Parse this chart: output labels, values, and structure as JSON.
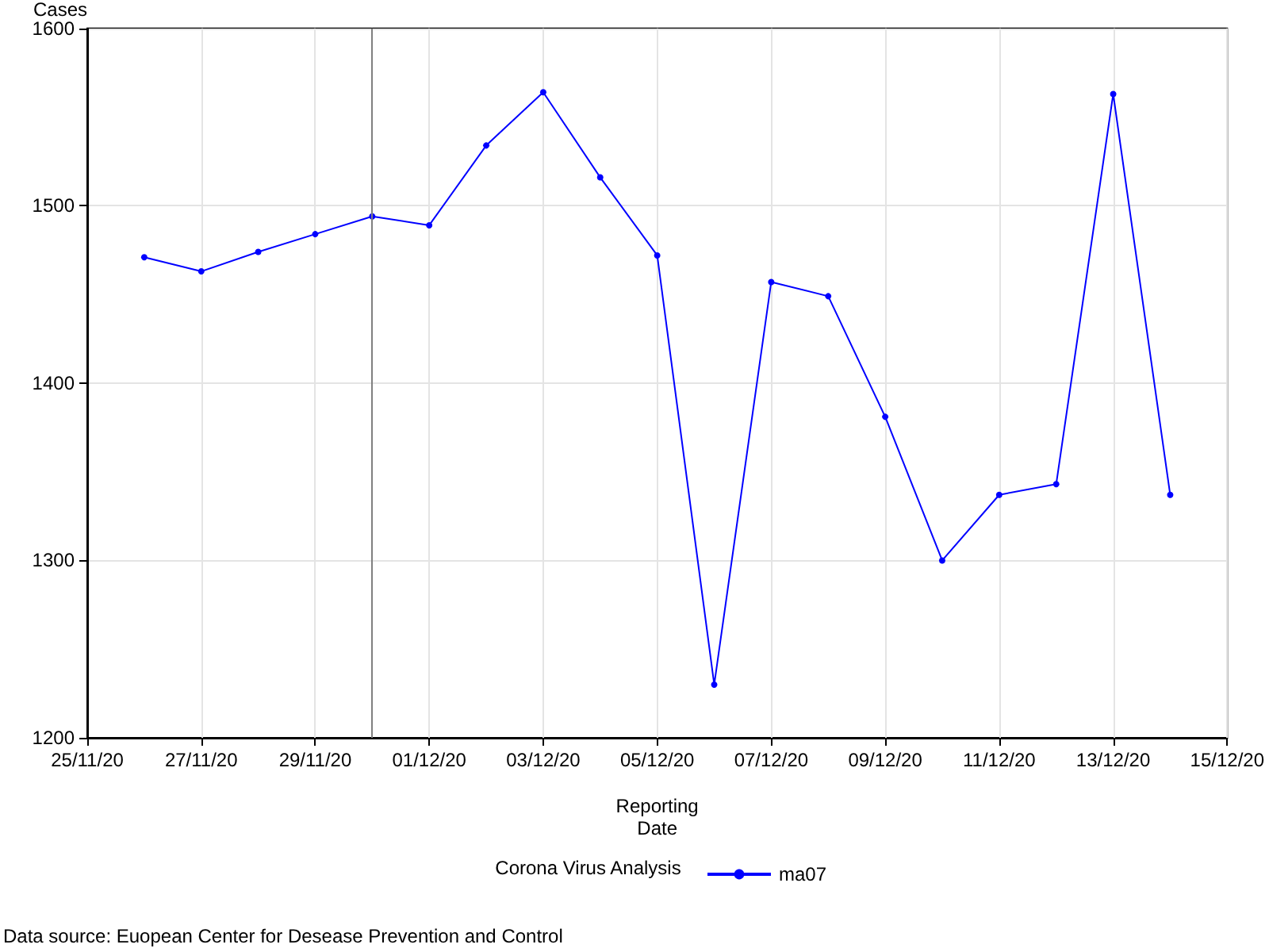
{
  "chart_data": {
    "type": "line",
    "xlabel": "Reporting\nDate",
    "ylabel": "Cases",
    "legend_title": "Corona Virus Analysis",
    "legend": "bottom",
    "grid": true,
    "marker": "circle",
    "line_style": "solid",
    "x": [
      "--11-26",
      "--11-27",
      "--11-28",
      "--11-29",
      "--11-30",
      "--12-01",
      "--12-02",
      "--12-03",
      "--12-04",
      "--12-05",
      "--12-06",
      "--12-07",
      "--12-08",
      "--12-09",
      "--12-10",
      "--12-11",
      "--12-12",
      "--12-13",
      "--12-14"
    ],
    "series": [
      {
        "name": "ma07",
        "color": "#0000ff",
        "values": [
          1471,
          1463,
          1474,
          1484,
          1494,
          1489,
          1534,
          1564,
          1516,
          1472,
          1230,
          1457,
          1449,
          1381,
          1300,
          1337,
          1343,
          1563,
          1337
        ]
      }
    ],
    "xlim": [
      "--11-25",
      "--12-15"
    ],
    "xticks": [
      {
        "value": "--11-25",
        "label": "25/11/20"
      },
      {
        "value": "--11-27",
        "label": "27/11/20"
      },
      {
        "value": "--11-29",
        "label": "29/11/20"
      },
      {
        "value": "--12-01",
        "label": "01/12/20"
      },
      {
        "value": "--12-03",
        "label": "03/12/20"
      },
      {
        "value": "--12-05",
        "label": "05/12/20"
      },
      {
        "value": "--12-07",
        "label": "07/12/20"
      },
      {
        "value": "--12-09",
        "label": "09/12/20"
      },
      {
        "value": "--12-11",
        "label": "11/12/20"
      },
      {
        "value": "--12-13",
        "label": "13/12/20"
      },
      {
        "value": "--12-15",
        "label": "15/12/20"
      }
    ],
    "ylim": [
      1200,
      1600
    ],
    "yticks": [
      1200,
      1300,
      1400,
      1500,
      1600
    ],
    "ref_lines": [
      {
        "axis": "x",
        "value": "--11-30",
        "color": "#808080",
        "line_style": "solid"
      }
    ],
    "annotations": [
      "Data source: Euopean Center for Desease Prevention and Control"
    ]
  }
}
